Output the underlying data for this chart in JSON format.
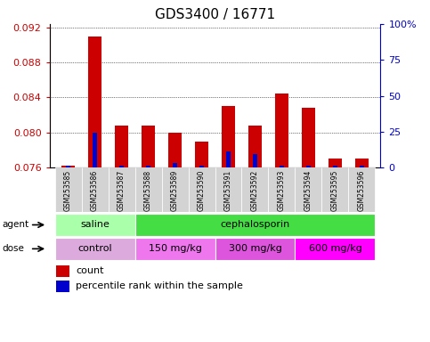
{
  "title": "GDS3400 / 16771",
  "samples": [
    "GSM253585",
    "GSM253586",
    "GSM253587",
    "GSM253588",
    "GSM253589",
    "GSM253590",
    "GSM253591",
    "GSM253592",
    "GSM253593",
    "GSM253594",
    "GSM253595",
    "GSM253596"
  ],
  "red_values": [
    0.0762,
    0.091,
    0.0808,
    0.0808,
    0.08,
    0.079,
    0.083,
    0.0808,
    0.0845,
    0.0828,
    0.077,
    0.077
  ],
  "blue_values": [
    0.0762,
    0.08,
    0.0762,
    0.0762,
    0.0765,
    0.0762,
    0.0778,
    0.0775,
    0.0762,
    0.0762,
    0.0762,
    0.0762
  ],
  "ylim_left": [
    0.076,
    0.0924
  ],
  "yticks_left": [
    0.076,
    0.08,
    0.084,
    0.088,
    0.092
  ],
  "ylim_right": [
    0,
    100
  ],
  "yticks_right": [
    0,
    25,
    50,
    75,
    100
  ],
  "baseline": 0.076,
  "agent_groups": [
    {
      "label": "saline",
      "start": 0,
      "end": 3,
      "color": "#aaffaa"
    },
    {
      "label": "cephalosporin",
      "start": 3,
      "end": 12,
      "color": "#44dd44"
    }
  ],
  "dose_groups": [
    {
      "label": "control",
      "start": 0,
      "end": 3,
      "color": "#ddaadd"
    },
    {
      "label": "150 mg/kg",
      "start": 3,
      "end": 6,
      "color": "#ee77ee"
    },
    {
      "label": "300 mg/kg",
      "start": 6,
      "end": 9,
      "color": "#dd55dd"
    },
    {
      "label": "600 mg/kg",
      "start": 9,
      "end": 12,
      "color": "#ff00ff"
    }
  ],
  "legend_count_color": "#cc0000",
  "legend_pct_color": "#0000cc",
  "bar_color_red": "#cc0000",
  "bar_color_blue": "#0000cc",
  "tick_label_color_left": "#cc0000",
  "tick_label_color_right": "#0000cc",
  "title_fontsize": 11,
  "tick_fontsize": 8,
  "bar_width": 0.5
}
